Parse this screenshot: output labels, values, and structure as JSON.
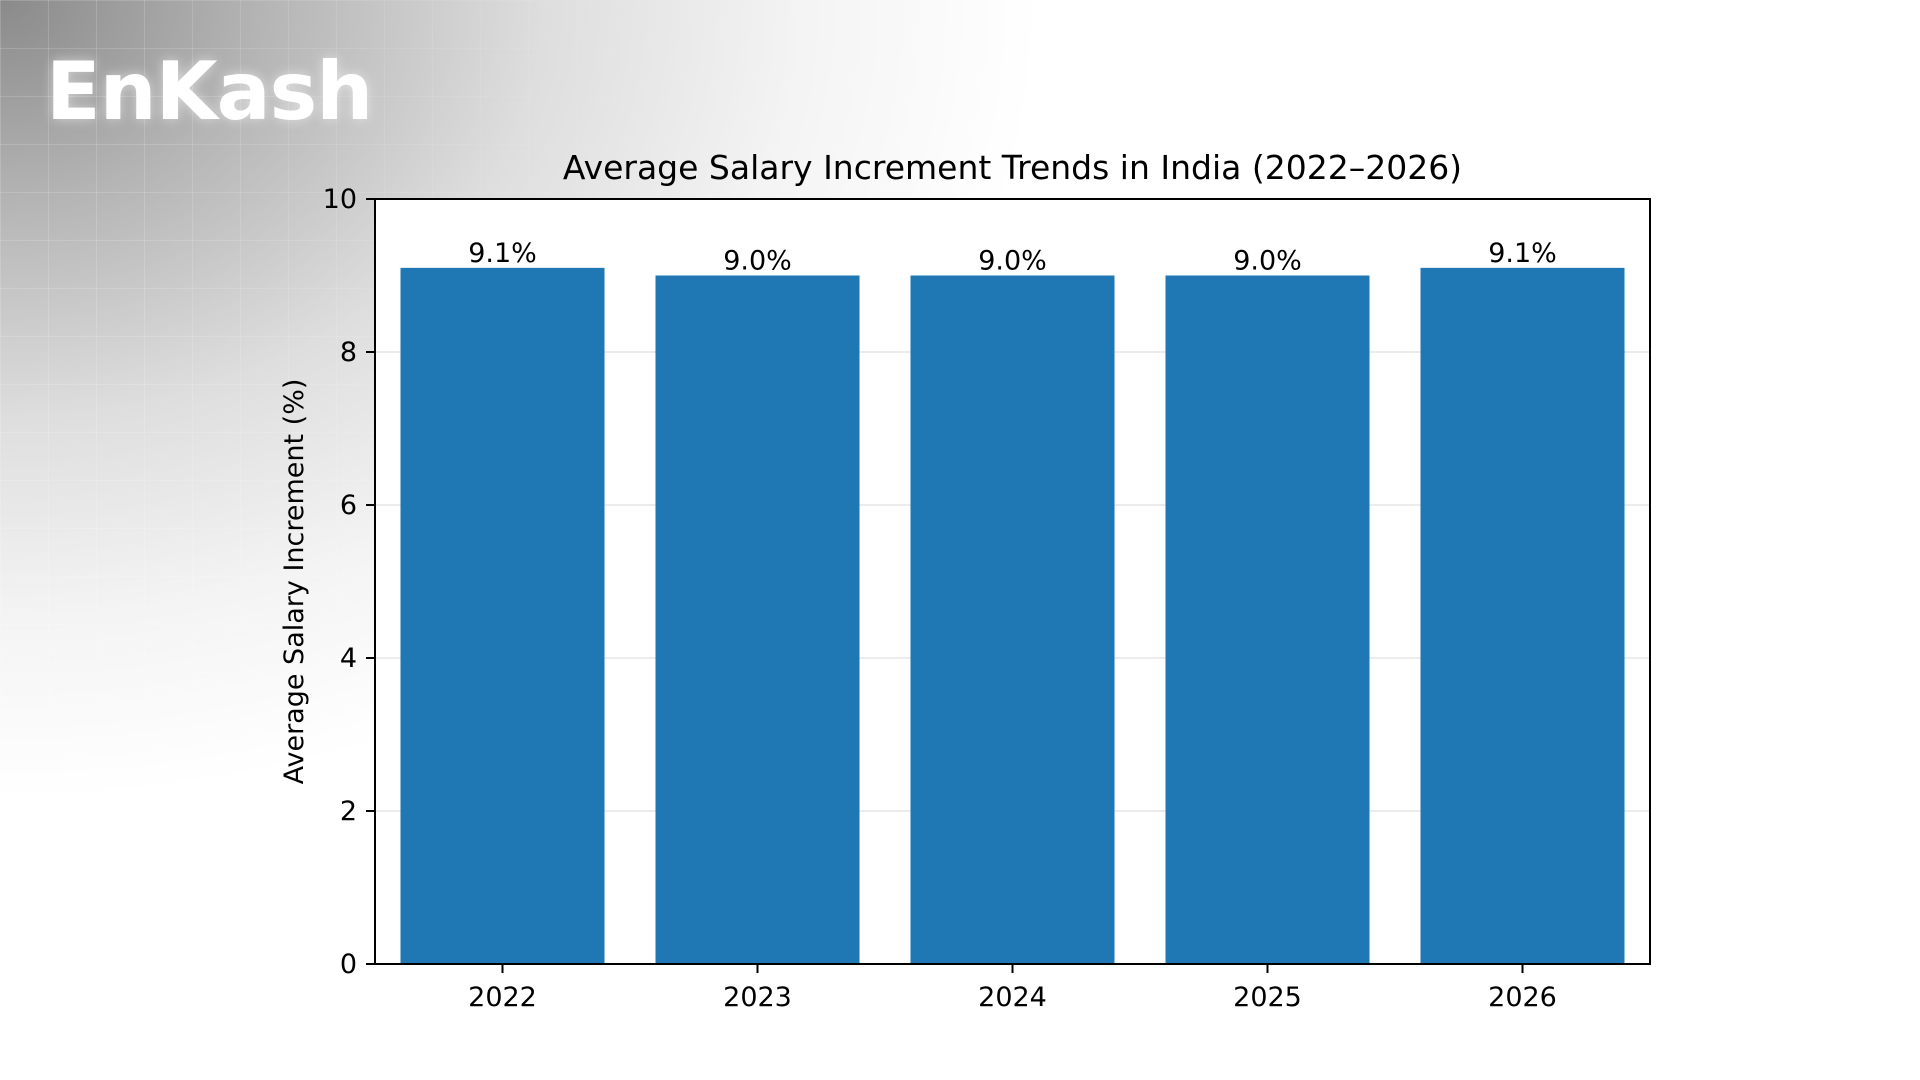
{
  "brand": {
    "logo_text": "EnKash"
  },
  "chart_data": {
    "type": "bar",
    "title": "Average Salary Increment Trends in India (2022–2026)",
    "xlabel": "",
    "ylabel": "Average Salary Increment (%)",
    "categories": [
      "2022",
      "2023",
      "2024",
      "2025",
      "2026"
    ],
    "values": [
      9.1,
      9.0,
      9.0,
      9.0,
      9.1
    ],
    "data_labels": [
      "9.1%",
      "9.0%",
      "9.0%",
      "9.0%",
      "9.1%"
    ],
    "ylim": [
      0,
      10
    ],
    "yticks": [
      "0",
      "2",
      "4",
      "6",
      "8",
      "10"
    ],
    "grid": "horizontal",
    "colors": {
      "bar": "#1f77b4",
      "grid": "#e6e6e6",
      "axis": "#000000"
    }
  }
}
